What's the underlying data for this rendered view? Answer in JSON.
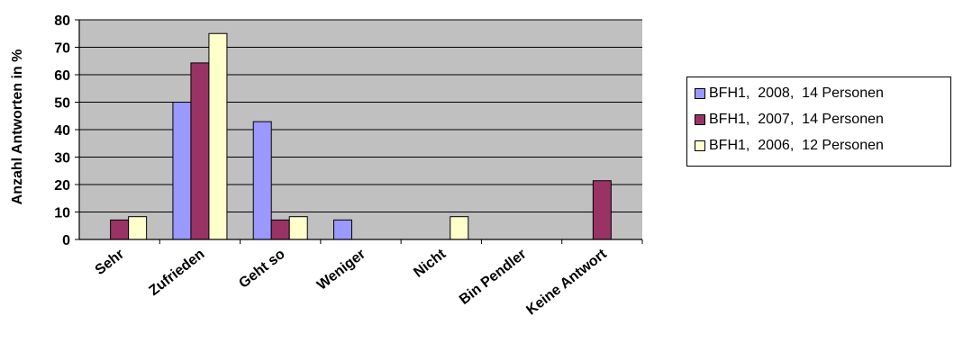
{
  "chart_data": {
    "type": "bar",
    "title": "",
    "xlabel": "",
    "ylabel": "Anzahl Antworten in %",
    "ylim": [
      0,
      80
    ],
    "yticks": [
      0,
      10,
      20,
      30,
      40,
      50,
      60,
      70,
      80
    ],
    "grid": true,
    "legend_position": "right",
    "plot_background": "#c0c0c0",
    "categories": [
      "Sehr",
      "Zufrieden",
      "Geht so",
      "Weniger",
      "Nicht",
      "Bin Pendler",
      "Keine Antwort"
    ],
    "series": [
      {
        "name": "BFH1,  2008,  14 Personen",
        "color": "#9999ff",
        "values": [
          0,
          50,
          42.9,
          7.1,
          0,
          0,
          0
        ]
      },
      {
        "name": "BFH1,  2007,  14 Personen",
        "color": "#993366",
        "values": [
          7.1,
          64.3,
          7.1,
          0,
          0,
          0,
          21.4
        ]
      },
      {
        "name": "BFH1,  2006,  12 Personen",
        "color": "#ffffcc",
        "values": [
          8.3,
          75,
          8.3,
          0,
          8.3,
          0,
          0
        ]
      }
    ]
  }
}
